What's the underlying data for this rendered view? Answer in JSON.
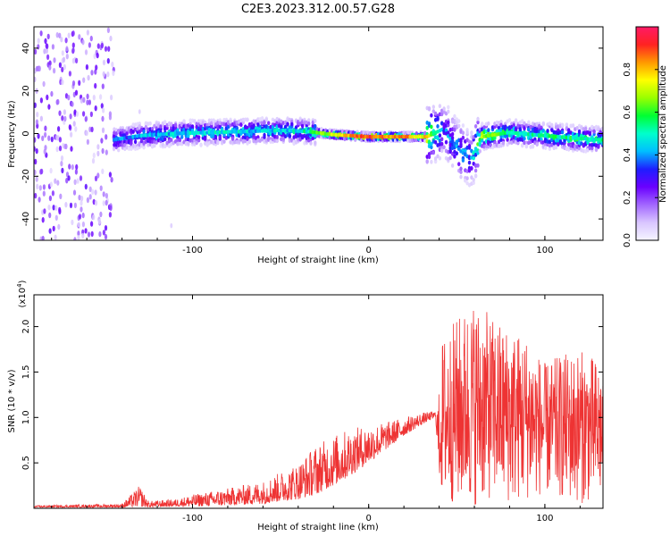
{
  "title": "C2E3.2023.312.00.57.G28",
  "colors": {
    "snr_line": "#ee3333",
    "spectrogram_background": "#ffffff"
  },
  "chart_data": [
    {
      "type": "heatmap",
      "xlabel": "Height of straight line (km)",
      "ylabel": "Frequency (Hz)",
      "xlim": [
        -190,
        133
      ],
      "ylim": [
        -50,
        50
      ],
      "x_ticks": [
        {
          "value": -100,
          "label": "-100"
        },
        {
          "value": 0,
          "label": "0"
        },
        {
          "value": 100,
          "label": "100"
        }
      ],
      "y_ticks": [
        {
          "value": -40,
          "label": "-40"
        },
        {
          "value": -20,
          "label": "-20"
        },
        {
          "value": 0,
          "label": "0"
        },
        {
          "value": 20,
          "label": "20"
        },
        {
          "value": 40,
          "label": "40"
        }
      ],
      "colorbar": {
        "label": "Normalized spectral amplitude",
        "range": [
          0,
          1
        ],
        "ticks": [
          {
            "value": 0.0,
            "label": "0.0"
          },
          {
            "value": 0.2,
            "label": "0.2"
          },
          {
            "value": 0.4,
            "label": "0.4"
          },
          {
            "value": 0.6,
            "label": "0.6"
          },
          {
            "value": 0.8,
            "label": "0.8"
          }
        ],
        "colormap": [
          "#f5f5ff",
          "#d9c6ff",
          "#a266ff",
          "#6a00ff",
          "#1e1eff",
          "#00bfff",
          "#00ffcc",
          "#00ff33",
          "#99ff00",
          "#ffff00",
          "#ff9900",
          "#ff2222",
          "#ff1a66"
        ]
      },
      "signal_track": [
        {
          "x": -145,
          "freq": -3,
          "amp": 0.35
        },
        {
          "x": -130,
          "freq": -1,
          "amp": 0.4
        },
        {
          "x": -110,
          "freq": 0,
          "amp": 0.45
        },
        {
          "x": -90,
          "freq": 0.5,
          "amp": 0.45
        },
        {
          "x": -70,
          "freq": 1,
          "amp": 0.45
        },
        {
          "x": -50,
          "freq": 1.5,
          "amp": 0.45
        },
        {
          "x": -35,
          "freq": 1,
          "amp": 0.5
        },
        {
          "x": -20,
          "freq": -0.5,
          "amp": 0.75
        },
        {
          "x": 0,
          "freq": -1.5,
          "amp": 0.9
        },
        {
          "x": 20,
          "freq": -1.5,
          "amp": 0.85
        },
        {
          "x": 33,
          "freq": -1.5,
          "amp": 0.75
        },
        {
          "x": 42,
          "freq": 2,
          "amp": 0.35
        },
        {
          "x": 52,
          "freq": -8,
          "amp": 0.4
        },
        {
          "x": 58,
          "freq": -12,
          "amp": 0.35
        },
        {
          "x": 64,
          "freq": -1.5,
          "amp": 0.7
        },
        {
          "x": 80,
          "freq": 0.5,
          "amp": 0.5
        },
        {
          "x": 100,
          "freq": -1,
          "amp": 0.5
        },
        {
          "x": 115,
          "freq": -2,
          "amp": 0.55
        },
        {
          "x": 133,
          "freq": -3,
          "amp": 0.5
        }
      ]
    },
    {
      "type": "line",
      "xlabel": "Height of straight line (km)",
      "ylabel": "SNR (10 * v/v)",
      "y_multiplier": "(x10",
      "y_multiplier_exponent": "4",
      "y_multiplier_close": ")",
      "xlim": [
        -190,
        133
      ],
      "ylim": [
        0,
        2.35
      ],
      "x_ticks": [
        {
          "value": -100,
          "label": "-100"
        },
        {
          "value": 0,
          "label": "0"
        },
        {
          "value": 100,
          "label": "100"
        }
      ],
      "y_ticks": [
        {
          "value": 0.5,
          "label": "0.5"
        },
        {
          "value": 1.0,
          "label": "1.0"
        },
        {
          "value": 1.5,
          "label": "1.5"
        },
        {
          "value": 2.0,
          "label": "2.0"
        }
      ],
      "envelope": [
        {
          "x": -190,
          "lower": 0.01,
          "upper": 0.03
        },
        {
          "x": -140,
          "lower": 0.01,
          "upper": 0.05
        },
        {
          "x": -130,
          "lower": 0.02,
          "upper": 0.25
        },
        {
          "x": -125,
          "lower": 0.01,
          "upper": 0.08
        },
        {
          "x": -110,
          "lower": 0.02,
          "upper": 0.1
        },
        {
          "x": -100,
          "lower": 0.02,
          "upper": 0.15
        },
        {
          "x": -80,
          "lower": 0.03,
          "upper": 0.22
        },
        {
          "x": -60,
          "lower": 0.05,
          "upper": 0.3
        },
        {
          "x": -40,
          "lower": 0.1,
          "upper": 0.5
        },
        {
          "x": -30,
          "lower": 0.15,
          "upper": 0.7
        },
        {
          "x": -15,
          "lower": 0.3,
          "upper": 0.85
        },
        {
          "x": 0,
          "lower": 0.5,
          "upper": 0.92
        },
        {
          "x": 10,
          "lower": 0.65,
          "upper": 0.95
        },
        {
          "x": 20,
          "lower": 0.8,
          "upper": 1.0
        },
        {
          "x": 30,
          "lower": 0.92,
          "upper": 1.05
        },
        {
          "x": 38,
          "lower": 1.0,
          "upper": 1.07
        },
        {
          "x": 40,
          "lower": 0.3,
          "upper": 1.3
        },
        {
          "x": 42,
          "lower": 0.08,
          "upper": 1.9
        },
        {
          "x": 50,
          "lower": 0.03,
          "upper": 2.1
        },
        {
          "x": 55,
          "lower": 0.05,
          "upper": 2.2
        },
        {
          "x": 60,
          "lower": 0.03,
          "upper": 2.3
        },
        {
          "x": 70,
          "lower": 0.1,
          "upper": 2.1
        },
        {
          "x": 80,
          "lower": 0.05,
          "upper": 2.0
        },
        {
          "x": 90,
          "lower": 0.1,
          "upper": 1.9
        },
        {
          "x": 100,
          "lower": 0.15,
          "upper": 1.6
        },
        {
          "x": 110,
          "lower": 0.1,
          "upper": 1.7
        },
        {
          "x": 120,
          "lower": 0.05,
          "upper": 1.75
        },
        {
          "x": 133,
          "lower": 0.1,
          "upper": 1.6
        }
      ]
    }
  ]
}
